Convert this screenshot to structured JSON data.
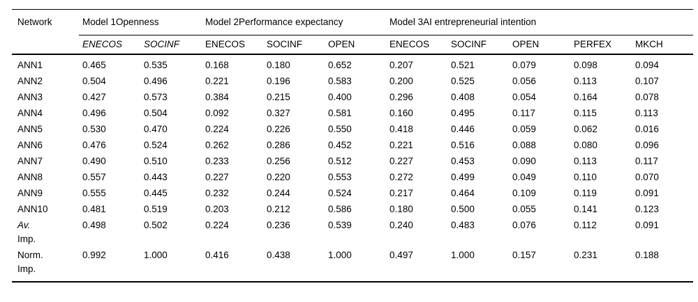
{
  "table": {
    "corner_header": "Network",
    "groups": [
      {
        "label": "Model 1Openness",
        "cols": 2
      },
      {
        "label": "Model 2Performance expectancy",
        "cols": 3
      },
      {
        "label": "Model 3AI entrepreneurial intention",
        "cols": 5
      }
    ],
    "subheaders": [
      {
        "label": "ENECOS",
        "italic": true
      },
      {
        "label": "SOCINF",
        "italic": true
      },
      {
        "label": "ENECOS",
        "italic": false
      },
      {
        "label": "SOCINF",
        "italic": false
      },
      {
        "label": "OPEN",
        "italic": false
      },
      {
        "label": "ENECOS",
        "italic": false
      },
      {
        "label": "SOCINF",
        "italic": false
      },
      {
        "label": "OPEN",
        "italic": false
      },
      {
        "label": "PERFEX",
        "italic": false
      },
      {
        "label": "MKCH",
        "italic": false
      }
    ],
    "rows": [
      {
        "label": "ANN1",
        "label2": "",
        "label_italic": false,
        "values": [
          "0.465",
          "0.535",
          "0.168",
          "0.180",
          "0.652",
          "0.207",
          "0.521",
          "0.079",
          "0.098",
          "0.094"
        ]
      },
      {
        "label": "ANN2",
        "label2": "",
        "label_italic": false,
        "values": [
          "0.504",
          "0.496",
          "0.221",
          "0.196",
          "0.583",
          "0.200",
          "0.525",
          "0.056",
          "0.113",
          "0.107"
        ]
      },
      {
        "label": "ANN3",
        "label2": "",
        "label_italic": false,
        "values": [
          "0.427",
          "0.573",
          "0.384",
          "0.215",
          "0.400",
          "0.296",
          "0.408",
          "0.054",
          "0.164",
          "0.078"
        ]
      },
      {
        "label": "ANN4",
        "label2": "",
        "label_italic": false,
        "values": [
          "0.496",
          "0.504",
          "0.092",
          "0.327",
          "0.581",
          "0.160",
          "0.495",
          "0.117",
          "0.115",
          "0.113"
        ]
      },
      {
        "label": "ANN5",
        "label2": "",
        "label_italic": false,
        "values": [
          "0.530",
          "0.470",
          "0.224",
          "0.226",
          "0.550",
          "0.418",
          "0.446",
          "0.059",
          "0.062",
          "0.016"
        ]
      },
      {
        "label": "ANN6",
        "label2": "",
        "label_italic": false,
        "values": [
          "0.476",
          "0.524",
          "0.262",
          "0.286",
          "0.452",
          "0.221",
          "0.516",
          "0.088",
          "0.080",
          "0.096"
        ]
      },
      {
        "label": "ANN7",
        "label2": "",
        "label_italic": false,
        "values": [
          "0.490",
          "0.510",
          "0.233",
          "0.256",
          "0.512",
          "0.227",
          "0.453",
          "0.090",
          "0.113",
          "0.117"
        ]
      },
      {
        "label": "ANN8",
        "label2": "",
        "label_italic": false,
        "values": [
          "0.557",
          "0.443",
          "0.227",
          "0.220",
          "0.553",
          "0.272",
          "0.499",
          "0.049",
          "0.110",
          "0.070"
        ]
      },
      {
        "label": "ANN9",
        "label2": "",
        "label_italic": false,
        "values": [
          "0.555",
          "0.445",
          "0.232",
          "0.244",
          "0.524",
          "0.217",
          "0.464",
          "0.109",
          "0.119",
          "0.091"
        ]
      },
      {
        "label": "ANN10",
        "label2": "",
        "label_italic": false,
        "values": [
          "0.481",
          "0.519",
          "0.203",
          "0.212",
          "0.586",
          "0.180",
          "0.500",
          "0.055",
          "0.141",
          "0.123"
        ]
      },
      {
        "label": "Av.",
        "label2": "Imp.",
        "label_italic": true,
        "values": [
          "0.498",
          "0.502",
          "0.224",
          "0.236",
          "0.539",
          "0.240",
          "0.483",
          "0.076",
          "0.112",
          "0.091"
        ]
      },
      {
        "label": "Norm.",
        "label2": "Imp.",
        "label_italic": false,
        "values": [
          "0.992",
          "1.000",
          "0.416",
          "0.438",
          "1.000",
          "0.497",
          "1.000",
          "0.157",
          "0.231",
          "0.188"
        ]
      }
    ]
  }
}
